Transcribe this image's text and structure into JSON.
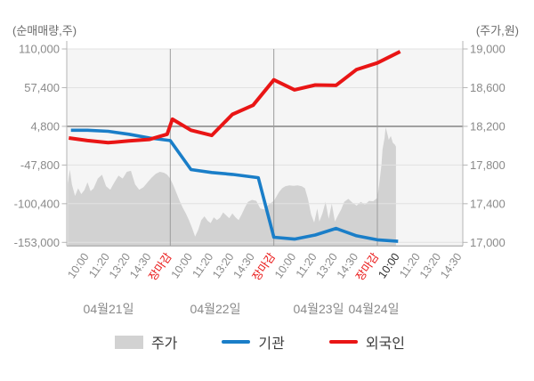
{
  "axes": {
    "left": {
      "unit_label": "(순매매량,주)",
      "ticks": [
        "110,000",
        "57,400",
        "4,800",
        "-47,800",
        "-100,400",
        "-153,000"
      ],
      "range": [
        -153000,
        110000
      ]
    },
    "right": {
      "unit_label": "(주가,원)",
      "ticks": [
        "19,000",
        "18,600",
        "18,200",
        "17,800",
        "17,400",
        "17,000"
      ],
      "range": [
        17000,
        19000
      ]
    }
  },
  "x_axis": {
    "days": [
      {
        "date": "04월21일",
        "times": [
          "10:00",
          "11:20",
          "13:20",
          "14:30",
          "장마감"
        ]
      },
      {
        "date": "04월22일",
        "times": [
          "10:00",
          "11:20",
          "13:20",
          "14:30",
          "장마감"
        ]
      },
      {
        "date": "04월23일",
        "times": [
          "10:00",
          "11:20",
          "13:20",
          "14:30",
          "장마감"
        ]
      },
      {
        "date": "04월24일",
        "times": [
          "10:00",
          "11:20",
          "13:20",
          "14:30"
        ],
        "emphasis_time": "10:00"
      }
    ]
  },
  "legend": {
    "items": [
      {
        "label": "주가",
        "swatch": "area",
        "color": "#d2d2d2"
      },
      {
        "label": "기관",
        "swatch": "line",
        "color": "#1a7ec8"
      },
      {
        "label": "외국인",
        "swatch": "line",
        "color": "#e91515"
      }
    ]
  },
  "colors": {
    "plot_background": "#f5f5f5",
    "grid": "#e2e2e2",
    "reference_grid": "#8d8d8d",
    "day_divider": "#9c9c9c",
    "axis_line": "#b5b5b5",
    "bottom_axis_line": "#9c9c9c",
    "tick_text": "#8a8a8a",
    "date_text": "#8a8a8a",
    "close_label_text": "#e91515",
    "emphasis_text": "#2e2e2e",
    "price_area": "#d2d2d2",
    "institution_line": "#1a7ec8",
    "foreigner_line": "#e91515"
  },
  "chart_data": {
    "type": "line",
    "title": "",
    "y_left_label": "(순매매량,주)",
    "y_right_label": "(주가,원)",
    "y_left_range": [
      -153000,
      110000
    ],
    "y_right_range": [
      17000,
      19000
    ],
    "reference_gridline": {
      "left": 4800,
      "right": 18200
    },
    "legend_entries": [
      "주가",
      "기관",
      "외국인"
    ],
    "legend_position": "bottom",
    "x_unit": "t in trading days; 0 = 04월21일 09:00, each day spans 0→1 (09:00–15:30); 0.2=10:00, 0.4=11:20, 0.6=13:20, 0.8=14:30, 1.0=장마감; data ends 04월24일 ~10:00 (t≈3.2)",
    "series": [
      {
        "name": "주가",
        "type": "area",
        "axis": "right",
        "color": "#d2d2d2",
        "points": [
          [
            0.01,
            17610
          ],
          [
            0.03,
            17750
          ],
          [
            0.05,
            17600
          ],
          [
            0.08,
            17480
          ],
          [
            0.11,
            17560
          ],
          [
            0.14,
            17500
          ],
          [
            0.17,
            17540
          ],
          [
            0.2,
            17620
          ],
          [
            0.23,
            17530
          ],
          [
            0.26,
            17560
          ],
          [
            0.3,
            17660
          ],
          [
            0.34,
            17700
          ],
          [
            0.38,
            17580
          ],
          [
            0.42,
            17545
          ],
          [
            0.46,
            17620
          ],
          [
            0.5,
            17690
          ],
          [
            0.54,
            17660
          ],
          [
            0.58,
            17730
          ],
          [
            0.62,
            17740
          ],
          [
            0.66,
            17600
          ],
          [
            0.7,
            17545
          ],
          [
            0.74,
            17570
          ],
          [
            0.78,
            17620
          ],
          [
            0.82,
            17670
          ],
          [
            0.86,
            17710
          ],
          [
            0.9,
            17730
          ],
          [
            0.94,
            17720
          ],
          [
            0.97,
            17700
          ],
          [
            1.0,
            17660
          ],
          [
            1.03,
            17590
          ],
          [
            1.06,
            17510
          ],
          [
            1.09,
            17430
          ],
          [
            1.12,
            17360
          ],
          [
            1.15,
            17300
          ],
          [
            1.18,
            17230
          ],
          [
            1.21,
            17150
          ],
          [
            1.24,
            17060
          ],
          [
            1.27,
            17130
          ],
          [
            1.3,
            17230
          ],
          [
            1.33,
            17270
          ],
          [
            1.36,
            17225
          ],
          [
            1.39,
            17200
          ],
          [
            1.42,
            17260
          ],
          [
            1.45,
            17230
          ],
          [
            1.48,
            17255
          ],
          [
            1.51,
            17310
          ],
          [
            1.54,
            17280
          ],
          [
            1.57,
            17250
          ],
          [
            1.6,
            17300
          ],
          [
            1.63,
            17260
          ],
          [
            1.66,
            17230
          ],
          [
            1.69,
            17290
          ],
          [
            1.72,
            17360
          ],
          [
            1.75,
            17420
          ],
          [
            1.79,
            17440
          ],
          [
            1.83,
            17430
          ],
          [
            1.87,
            17350
          ],
          [
            1.91,
            17340
          ],
          [
            1.95,
            17390
          ],
          [
            2.0,
            17430
          ],
          [
            2.02,
            17465
          ],
          [
            2.05,
            17520
          ],
          [
            2.08,
            17560
          ],
          [
            2.11,
            17580
          ],
          [
            2.15,
            17590
          ],
          [
            2.19,
            17585
          ],
          [
            2.23,
            17590
          ],
          [
            2.27,
            17580
          ],
          [
            2.3,
            17560
          ],
          [
            2.33,
            17450
          ],
          [
            2.36,
            17290
          ],
          [
            2.39,
            17205
          ],
          [
            2.42,
            17350
          ],
          [
            2.44,
            17215
          ],
          [
            2.47,
            17300
          ],
          [
            2.5,
            17420
          ],
          [
            2.53,
            17245
          ],
          [
            2.56,
            17400
          ],
          [
            2.59,
            17215
          ],
          [
            2.62,
            17280
          ],
          [
            2.65,
            17340
          ],
          [
            2.68,
            17420
          ],
          [
            2.72,
            17450
          ],
          [
            2.76,
            17410
          ],
          [
            2.8,
            17380
          ],
          [
            2.84,
            17420
          ],
          [
            2.88,
            17390
          ],
          [
            2.92,
            17430
          ],
          [
            2.96,
            17425
          ],
          [
            3.0,
            17460
          ],
          [
            3.02,
            17620
          ],
          [
            3.04,
            17800
          ],
          [
            3.05,
            17960
          ],
          [
            3.07,
            18080
          ],
          [
            3.08,
            18190
          ],
          [
            3.1,
            18110
          ],
          [
            3.11,
            18060
          ],
          [
            3.13,
            18100
          ],
          [
            3.15,
            18030
          ],
          [
            3.17,
            18010
          ],
          [
            3.18,
            17990
          ]
        ]
      },
      {
        "name": "기관",
        "type": "line",
        "axis": "left",
        "color": "#1a7ec8",
        "points": [
          [
            0.04,
            -500
          ],
          [
            0.2,
            -500
          ],
          [
            0.4,
            -2000
          ],
          [
            0.6,
            -6000
          ],
          [
            0.8,
            -11000
          ],
          [
            1.0,
            -14500
          ],
          [
            1.2,
            -54000
          ],
          [
            1.4,
            -58000
          ],
          [
            1.6,
            -60500
          ],
          [
            1.85,
            -65000
          ],
          [
            2.0,
            -146000
          ],
          [
            2.2,
            -148500
          ],
          [
            2.4,
            -143000
          ],
          [
            2.6,
            -134000
          ],
          [
            2.8,
            -144000
          ],
          [
            3.0,
            -149500
          ],
          [
            3.2,
            -151500
          ]
        ]
      },
      {
        "name": "외국인",
        "type": "line",
        "axis": "left",
        "color": "#e91515",
        "points": [
          [
            0.02,
            -11000
          ],
          [
            0.2,
            -14500
          ],
          [
            0.4,
            -17500
          ],
          [
            0.6,
            -15000
          ],
          [
            0.8,
            -13000
          ],
          [
            0.97,
            -6000
          ],
          [
            1.02,
            14500
          ],
          [
            1.2,
            -500
          ],
          [
            1.4,
            -7500
          ],
          [
            1.6,
            21000
          ],
          [
            1.8,
            33500
          ],
          [
            2.0,
            68000
          ],
          [
            2.2,
            54500
          ],
          [
            2.4,
            61000
          ],
          [
            2.6,
            60500
          ],
          [
            2.8,
            82000
          ],
          [
            3.0,
            91000
          ],
          [
            3.22,
            106500
          ]
        ]
      }
    ]
  }
}
